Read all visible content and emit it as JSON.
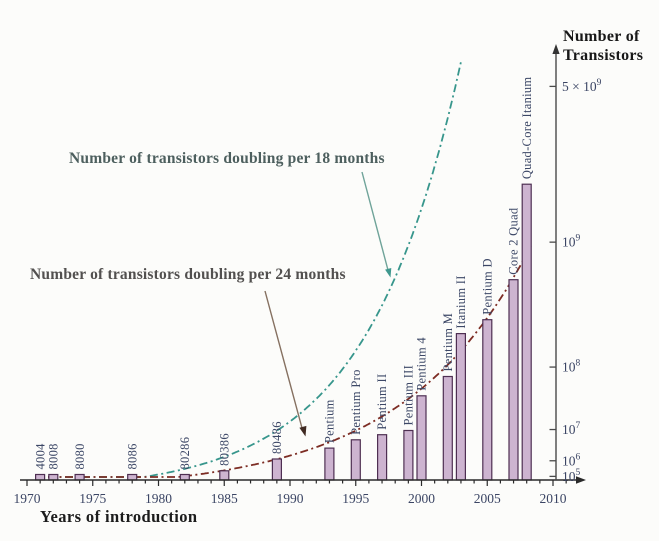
{
  "labels": {
    "y_title_line1": "Number of",
    "y_title_line2": "Transistors"
  },
  "chart_data": {
    "type": "bar",
    "title": "",
    "xlabel": "Years of introduction",
    "ylabel": "Number of Transistors",
    "y_scale": "log",
    "grid": false,
    "legend_position": "annotated-arrows",
    "xlim": [
      1970,
      2012
    ],
    "x_ticks": [
      1970,
      1975,
      1980,
      1985,
      1990,
      1995,
      2000,
      2005,
      2010
    ],
    "y_ticks": [
      {
        "value": 5000000000,
        "prefix": "5 × ",
        "base": "10",
        "exp": "9"
      },
      {
        "value": 1000000000,
        "prefix": "",
        "base": "10",
        "exp": "9"
      },
      {
        "value": 100000000,
        "prefix": "",
        "base": "10",
        "exp": "8"
      },
      {
        "value": 10000000,
        "prefix": "",
        "base": "10",
        "exp": "7"
      },
      {
        "value": 1000000,
        "prefix": "",
        "base": "10",
        "exp": "6"
      },
      {
        "value": 100000,
        "prefix": "",
        "base": "10",
        "exp": "5"
      }
    ],
    "processors": [
      {
        "name": "4004",
        "year": 1971,
        "transistors": 2300
      },
      {
        "name": "8008",
        "year": 1972,
        "transistors": 3500
      },
      {
        "name": "8080",
        "year": 1974,
        "transistors": 6000
      },
      {
        "name": "8086",
        "year": 1978,
        "transistors": 29000
      },
      {
        "name": "80286",
        "year": 1982,
        "transistors": 134000
      },
      {
        "name": "80386",
        "year": 1985,
        "transistors": 275000
      },
      {
        "name": "80486",
        "year": 1989,
        "transistors": 1200000
      },
      {
        "name": "Pentium",
        "year": 1993,
        "transistors": 3100000
      },
      {
        "name": "Pentium Pro",
        "year": 1995,
        "transistors": 5500000
      },
      {
        "name": "Pentium II",
        "year": 1997,
        "transistors": 7500000
      },
      {
        "name": "Pentium III",
        "year": 1999,
        "transistors": 9500000
      },
      {
        "name": "Pentium 4",
        "year": 2000,
        "transistors": 42000000
      },
      {
        "name": "Pentium M",
        "year": 2002,
        "transistors": 77000000
      },
      {
        "name": "Itanium II",
        "year": 2003,
        "transistors": 220000000
      },
      {
        "name": "Pentium D",
        "year": 2005,
        "transistors": 291000000
      },
      {
        "name": "Core 2 Quad",
        "year": 2007,
        "transistors": 582000000
      },
      {
        "name": "Quad-Core Itanium",
        "year": 2008,
        "transistors": 2000000000
      }
    ],
    "curves": [
      {
        "name": "Number of transistors doubling per 18 months",
        "doubling_months": 18,
        "start_year": 1971,
        "start_value": 2300,
        "end_year": 2003.1,
        "color": "#37968c"
      },
      {
        "name": "Number of transistors doubling per 24 months",
        "doubling_months": 24,
        "start_year": 1971,
        "start_value": 2300,
        "end_year": 2008.35,
        "color": "#7d2d24"
      }
    ],
    "colors": {
      "bar_fill": "#cdb4d0",
      "bar_border": "#4e2f52",
      "curve_18m": "#37968c",
      "curve_24m": "#7d2d24",
      "axis": "#2a2a2a",
      "tick_text": "#3b4564"
    }
  }
}
